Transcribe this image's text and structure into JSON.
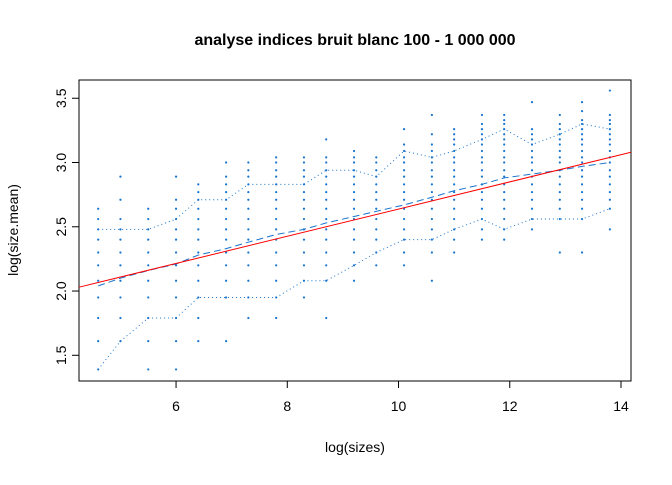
{
  "chart_data": {
    "type": "scatter",
    "title": "analyse indices bruit blanc 100 - 1 000 000",
    "x_label": "log(sizes)",
    "y_label": "log(size.mean)",
    "xlim": [
      4.255,
      14.18
    ],
    "ylim": [
      1.3,
      3.642
    ],
    "xticks": [
      6,
      8,
      10,
      12,
      14
    ],
    "yticks": [
      1.5,
      {
        "value": 2.0,
        "label": "2.0"
      },
      2.5,
      {
        "value": 3.0,
        "label": "3.0"
      },
      3.5
    ],
    "series": [
      {
        "kind": "points",
        "color": "#1874cd",
        "x": [
          4.6,
          5.0,
          5.5,
          6.0,
          6.4,
          6.9,
          7.3,
          7.8,
          8.3,
          8.7,
          9.2,
          9.6,
          10.1,
          10.6,
          11.0,
          11.5,
          11.9,
          12.4,
          12.9,
          13.3,
          13.8
        ],
        "values": [
          [
            1.39,
            1.61,
            1.79,
            1.95,
            2.08,
            2.2,
            2.3,
            2.4,
            2.48,
            2.56,
            2.64
          ],
          [
            1.61,
            1.79,
            1.95,
            2.08,
            2.2,
            2.3,
            2.4,
            2.48,
            2.56,
            2.71,
            2.89
          ],
          [
            1.39,
            1.61,
            1.79,
            1.95,
            2.08,
            2.2,
            2.3,
            2.4,
            2.48,
            2.56,
            2.64
          ],
          [
            1.39,
            1.61,
            1.79,
            1.95,
            2.08,
            2.2,
            2.3,
            2.4,
            2.48,
            2.56,
            2.64,
            2.71,
            2.89
          ],
          [
            1.61,
            1.79,
            1.95,
            2.08,
            2.2,
            2.3,
            2.4,
            2.48,
            2.56,
            2.64,
            2.71,
            2.77,
            2.83
          ],
          [
            1.61,
            1.95,
            2.08,
            2.2,
            2.3,
            2.4,
            2.48,
            2.56,
            2.64,
            2.71,
            2.77,
            2.83,
            2.89,
            3.0
          ],
          [
            1.79,
            1.95,
            2.08,
            2.2,
            2.3,
            2.4,
            2.48,
            2.56,
            2.64,
            2.71,
            2.77,
            2.83,
            2.89,
            2.94,
            3.0
          ],
          [
            1.79,
            1.95,
            2.08,
            2.2,
            2.3,
            2.4,
            2.48,
            2.56,
            2.64,
            2.71,
            2.77,
            2.83,
            2.89,
            2.94,
            3.0,
            3.04
          ],
          [
            1.95,
            2.08,
            2.2,
            2.3,
            2.4,
            2.48,
            2.56,
            2.64,
            2.71,
            2.77,
            2.83,
            2.89,
            2.94,
            3.0,
            3.04
          ],
          [
            1.79,
            2.08,
            2.2,
            2.3,
            2.4,
            2.48,
            2.56,
            2.64,
            2.71,
            2.77,
            2.83,
            2.89,
            2.94,
            3.0,
            3.04,
            3.18
          ],
          [
            2.08,
            2.2,
            2.3,
            2.4,
            2.48,
            2.56,
            2.64,
            2.71,
            2.77,
            2.83,
            2.89,
            2.94,
            3.0,
            3.04,
            3.09
          ],
          [
            2.2,
            2.3,
            2.4,
            2.48,
            2.56,
            2.64,
            2.71,
            2.77,
            2.83,
            2.89,
            2.94,
            3.0,
            3.04
          ],
          [
            2.2,
            2.3,
            2.4,
            2.48,
            2.56,
            2.64,
            2.71,
            2.77,
            2.83,
            2.89,
            2.94,
            3.0,
            3.04,
            3.09,
            3.14,
            3.26
          ],
          [
            2.08,
            2.3,
            2.4,
            2.48,
            2.56,
            2.64,
            2.71,
            2.77,
            2.83,
            2.89,
            2.94,
            3.0,
            3.04,
            3.09,
            3.14,
            3.22,
            3.37
          ],
          [
            2.3,
            2.4,
            2.48,
            2.56,
            2.64,
            2.71,
            2.77,
            2.83,
            2.89,
            2.94,
            3.0,
            3.04,
            3.09,
            3.14,
            3.18,
            3.22,
            3.26
          ],
          [
            2.4,
            2.48,
            2.56,
            2.64,
            2.71,
            2.77,
            2.83,
            2.89,
            2.94,
            3.0,
            3.04,
            3.09,
            3.14,
            3.18,
            3.22,
            3.26,
            3.3,
            3.37
          ],
          [
            2.4,
            2.48,
            2.56,
            2.64,
            2.71,
            2.77,
            2.83,
            2.89,
            2.94,
            3.0,
            3.04,
            3.09,
            3.14,
            3.18,
            3.22,
            3.26,
            3.3,
            3.33,
            3.37
          ],
          [
            2.48,
            2.56,
            2.64,
            2.71,
            2.77,
            2.83,
            2.89,
            2.94,
            3.0,
            3.04,
            3.09,
            3.14,
            3.18,
            3.22,
            3.26,
            3.47
          ],
          [
            2.3,
            2.56,
            2.64,
            2.71,
            2.77,
            2.83,
            2.89,
            2.94,
            3.0,
            3.04,
            3.09,
            3.14,
            3.18,
            3.22,
            3.26,
            3.3,
            3.37
          ],
          [
            2.3,
            2.56,
            2.64,
            2.71,
            2.77,
            2.83,
            2.89,
            2.94,
            3.0,
            3.04,
            3.09,
            3.14,
            3.18,
            3.22,
            3.26,
            3.3,
            3.33,
            3.4,
            3.47
          ],
          [
            2.48,
            2.64,
            2.71,
            2.77,
            2.83,
            2.89,
            2.94,
            3.0,
            3.04,
            3.09,
            3.14,
            3.18,
            3.22,
            3.26,
            3.3,
            3.33,
            3.37,
            3.56
          ]
        ]
      },
      {
        "kind": "line",
        "style": "dashed",
        "color": "#1874cd",
        "x": [
          4.6,
          5.0,
          5.5,
          6.0,
          6.4,
          6.9,
          7.3,
          7.8,
          8.3,
          8.7,
          9.2,
          9.6,
          10.1,
          10.6,
          11.0,
          11.5,
          11.9,
          12.4,
          12.9,
          13.3,
          13.8
        ],
        "values": [
          2.04,
          2.1,
          2.16,
          2.21,
          2.28,
          2.33,
          2.38,
          2.44,
          2.48,
          2.53,
          2.58,
          2.62,
          2.67,
          2.73,
          2.78,
          2.83,
          2.88,
          2.91,
          2.94,
          2.97,
          3.0
        ]
      },
      {
        "kind": "line",
        "style": "dotted",
        "color": "#1874cd",
        "x": [
          4.6,
          5.0,
          5.5,
          6.0,
          6.4,
          6.9,
          7.3,
          7.8,
          8.3,
          8.7,
          9.2,
          9.6,
          10.1,
          10.6,
          11.0,
          11.5,
          11.9,
          12.4,
          12.9,
          13.3,
          13.8
        ],
        "values": [
          2.48,
          2.48,
          2.48,
          2.56,
          2.71,
          2.71,
          2.83,
          2.83,
          2.83,
          2.94,
          2.94,
          2.89,
          3.09,
          3.04,
          3.09,
          3.18,
          3.26,
          3.14,
          3.22,
          3.3,
          3.26
        ]
      },
      {
        "kind": "line",
        "style": "dotted",
        "color": "#1874cd",
        "x": [
          4.6,
          5.0,
          5.5,
          6.0,
          6.4,
          6.9,
          7.3,
          7.8,
          8.3,
          8.7,
          9.2,
          9.6,
          10.1,
          10.6,
          11.0,
          11.5,
          11.9,
          12.4,
          12.9,
          13.3,
          13.8
        ],
        "values": [
          1.39,
          1.61,
          1.79,
          1.79,
          1.95,
          1.95,
          1.95,
          1.95,
          2.08,
          2.08,
          2.2,
          2.3,
          2.4,
          2.4,
          2.48,
          2.56,
          2.48,
          2.56,
          2.56,
          2.56,
          2.64
        ]
      },
      {
        "kind": "line",
        "style": "solid",
        "color": "#ff0000",
        "x": [
          4.255,
          14.18
        ],
        "values": [
          2.03,
          3.08
        ]
      }
    ]
  }
}
